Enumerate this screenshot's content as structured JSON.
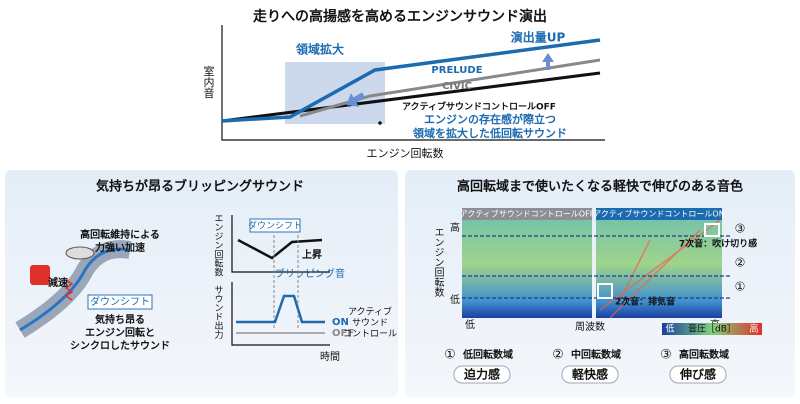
{
  "top": {
    "title": "走りへの高揚感を高めるエンジンサウンド演出",
    "y_label": "室内音",
    "x_label": "エンジン回転数",
    "region": "領域拡大",
    "boost": "演出量UP",
    "prelude": "PRELUDE",
    "civic": "CIVIC",
    "off": "アクティブサウンドコントロールOFF",
    "note": [
      "エンジンの存在感が際立つ",
      "領域を拡大した低回転サウンド"
    ]
  },
  "left": {
    "title": "気持ちが昂るブリッピングサウンド",
    "accel": [
      "高回転維持による",
      "力強い加速"
    ],
    "decel": "減速",
    "downshift": "ダウンシフト",
    "sound": [
      "気持ち昂る",
      "エンジン回転と",
      "シンクロしたサウンド"
    ],
    "graph": {
      "rpm_label": "エンジン回転数",
      "downshift": "ダウンシフト",
      "rise": "上昇",
      "blip": "ブリッピング音",
      "output_label": "サウンド出力",
      "on": "ON",
      "off": "OFF",
      "control": [
        "アクティブ",
        "サウンド",
        "コントロール"
      ],
      "time": "時間"
    }
  },
  "right": {
    "title": "高回転域まで使いたくなる軽快で伸びのある音色",
    "off_header": "アクティブサウンドコントロールOFF",
    "on_header": "アクティブサウンドコントロールON",
    "y_label": "エンジン回転数",
    "y_high": "高",
    "y_low": "低",
    "x_low": "低",
    "x_label": "周波数",
    "x_high": "高",
    "markers": [
      "③",
      "②",
      "①"
    ],
    "order7": "7次音：吹け切り感",
    "order2": "2次音：排気音",
    "legend": {
      "low": "低",
      "label": "音圧［dB］",
      "high": "高"
    },
    "zones": [
      {
        "num": "①",
        "name": "低回転数域",
        "feel": "迫力感"
      },
      {
        "num": "②",
        "name": "中回転数域",
        "feel": "軽快感"
      },
      {
        "num": "③",
        "name": "高回転数域",
        "feel": "伸び感"
      }
    ]
  }
}
